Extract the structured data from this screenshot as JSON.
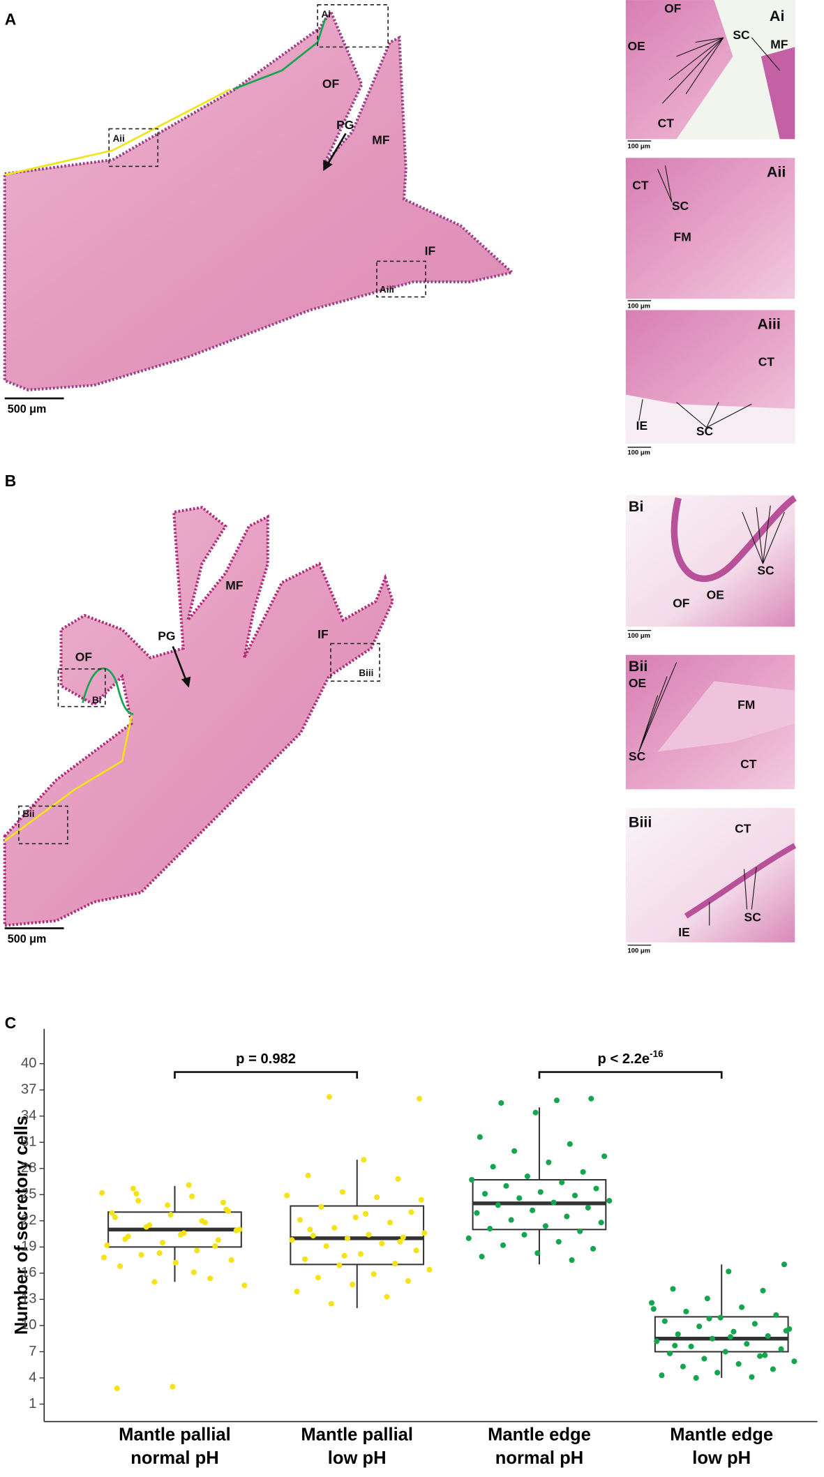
{
  "panels": {
    "A": {
      "label": "A",
      "scale_bar": "500 μm",
      "box_labels": [
        "Ai",
        "Aii",
        "Aiii"
      ],
      "tissue_labels": [
        "OF",
        "PG",
        "MF",
        "IF"
      ]
    },
    "Ai": {
      "label": "Ai",
      "scale_bar": "100 μm",
      "tissue_labels": [
        "OF",
        "OE",
        "SC",
        "MF",
        "CT"
      ]
    },
    "Aii": {
      "label": "Aii",
      "scale_bar": "100 μm",
      "tissue_labels": [
        "CT",
        "SC",
        "FM"
      ]
    },
    "Aiii": {
      "label": "Aiii",
      "scale_bar": "100 μm",
      "tissue_labels": [
        "CT",
        "IE",
        "SC"
      ]
    },
    "B": {
      "label": "B",
      "scale_bar": "500 μm",
      "box_labels": [
        "Bi",
        "Bii",
        "Biii"
      ],
      "tissue_labels": [
        "OF",
        "PG",
        "MF",
        "IF"
      ]
    },
    "Bi": {
      "label": "Bi",
      "scale_bar": "100 μm",
      "tissue_labels": [
        "SC",
        "OE",
        "OF"
      ]
    },
    "Bii": {
      "label": "Bii",
      "scale_bar": "100 μm",
      "tissue_labels": [
        "OE",
        "FM",
        "SC",
        "CT"
      ]
    },
    "Biii": {
      "label": "Biii",
      "scale_bar": "100 μm",
      "tissue_labels": [
        "CT",
        "SC",
        "IE"
      ]
    },
    "C": {
      "label": "C"
    }
  },
  "chart_data": {
    "type": "box",
    "y_label": "Number of secretory cells",
    "categories": [
      [
        "Mantle pallial",
        "normal pH"
      ],
      [
        "Mantle pallial",
        "low pH"
      ],
      [
        "Mantle edge",
        "normal pH"
      ],
      [
        "Mantle edge",
        "low pH"
      ]
    ],
    "colors": [
      "#f2e418",
      "#f2e418",
      "#14a54e",
      "#14a54e"
    ],
    "boxes": [
      {
        "whisker_low": 15,
        "q1": 19,
        "median": 21,
        "q3": 23,
        "whisker_high": 26
      },
      {
        "whisker_low": 12,
        "q1": 17,
        "median": 20,
        "q3": 23.7,
        "whisker_high": 29
      },
      {
        "whisker_low": 17,
        "q1": 21,
        "median": 24,
        "q3": 26.7,
        "whisker_high": 35
      },
      {
        "whisker_low": 4,
        "q1": 7,
        "median": 8.5,
        "q3": 11,
        "whisker_high": 17
      }
    ],
    "points": [
      [
        25.2,
        24.8,
        25.1,
        23.3,
        22.7,
        22.4,
        21.8,
        21.5,
        21.0,
        20.6,
        20.2,
        19.8,
        19.5,
        19.2,
        18.6,
        18.1,
        17.5,
        17.2,
        16.8,
        15.4,
        15.0,
        14.6,
        26.1,
        25.7,
        24.1,
        23.8,
        22.9,
        22.0,
        21.3,
        20.9,
        20.4,
        19.9,
        19.1,
        18.3,
        17.8,
        16.1,
        24.3,
        23.1,
        3.0,
        2.8
      ],
      [
        36.2,
        36.0,
        29.0,
        27.2,
        26.8,
        25.3,
        24.9,
        24.7,
        23.6,
        23.0,
        22.4,
        22.1,
        21.8,
        21.2,
        20.6,
        20.4,
        20.3,
        20.1,
        20.0,
        19.8,
        19.4,
        19.1,
        18.6,
        18.2,
        17.6,
        17.1,
        16.9,
        16.4,
        15.9,
        15.5,
        15.1,
        14.7,
        13.9,
        13.3,
        12.5,
        24.4,
        22.8,
        21.0,
        19.6,
        18.0
      ],
      [
        35.8,
        35.5,
        36.0,
        34.4,
        31.6,
        30.8,
        30.0,
        29.4,
        28.7,
        28.2,
        27.6,
        27.1,
        26.7,
        26.4,
        26.0,
        25.7,
        25.3,
        25.1,
        24.9,
        24.6,
        24.3,
        24.1,
        23.8,
        23.5,
        23.2,
        22.9,
        22.5,
        22.1,
        21.8,
        21.4,
        21.1,
        20.8,
        20.4,
        20.0,
        19.6,
        19.2,
        18.8,
        18.3,
        17.9,
        17.5
      ],
      [
        17.0,
        16.2,
        14.2,
        14.0,
        13.1,
        12.6,
        12.1,
        11.6,
        11.2,
        10.9,
        10.5,
        10.2,
        9.9,
        9.6,
        9.3,
        9.0,
        8.8,
        8.5,
        8.2,
        7.9,
        7.6,
        7.3,
        7.0,
        6.8,
        6.5,
        6.2,
        5.9,
        5.6,
        5.3,
        5.0,
        4.6,
        4.3,
        4.1,
        4.0,
        9.4,
        8.7,
        7.7,
        6.6,
        10.8,
        11.9
      ]
    ],
    "ylim": [
      -1,
      44
    ],
    "yticks": [
      1,
      4,
      7,
      10,
      13,
      16,
      19,
      22,
      25,
      28,
      31,
      34,
      37,
      40
    ],
    "brackets": [
      {
        "text": "p = 0.982"
      },
      {
        "text": "p < 2.2e",
        "superscript": "-16"
      }
    ]
  }
}
